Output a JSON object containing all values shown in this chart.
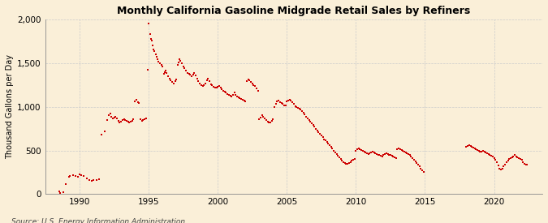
{
  "title": "Monthly California Gasoline Midgrade Retail Sales by Refiners",
  "ylabel": "Thousand Gallons per Day",
  "source": "Source: U.S. Energy Information Administration",
  "background_color": "#faefd8",
  "dot_color": "#cc0000",
  "dot_size": 3,
  "ylim": [
    0,
    2000
  ],
  "yticks": [
    0,
    500,
    1000,
    1500,
    2000
  ],
  "ytick_labels": [
    "0",
    "500",
    "1,000",
    "1,500",
    "2,000"
  ],
  "xticks": [
    1990,
    1995,
    2000,
    2005,
    2010,
    2015,
    2020
  ],
  "xlim": [
    1987.5,
    2023.5
  ],
  "grid_color": "#cccccc",
  "data": [
    [
      1988.5,
      30
    ],
    [
      1988.6,
      12
    ],
    [
      1988.8,
      22
    ],
    [
      1989.0,
      120
    ],
    [
      1989.2,
      195
    ],
    [
      1989.3,
      210
    ],
    [
      1989.5,
      220
    ],
    [
      1989.7,
      210
    ],
    [
      1989.9,
      195
    ],
    [
      1990.0,
      225
    ],
    [
      1990.1,
      220
    ],
    [
      1990.3,
      210
    ],
    [
      1990.5,
      180
    ],
    [
      1990.7,
      165
    ],
    [
      1990.9,
      155
    ],
    [
      1991.0,
      165
    ],
    [
      1991.2,
      160
    ],
    [
      1991.4,
      170
    ],
    [
      1991.6,
      680
    ],
    [
      1991.8,
      720
    ],
    [
      1992.0,
      850
    ],
    [
      1992.1,
      900
    ],
    [
      1992.2,
      920
    ],
    [
      1992.3,
      890
    ],
    [
      1992.4,
      870
    ],
    [
      1992.5,
      880
    ],
    [
      1992.6,
      890
    ],
    [
      1992.7,
      870
    ],
    [
      1992.8,
      840
    ],
    [
      1992.9,
      820
    ],
    [
      1993.0,
      830
    ],
    [
      1993.1,
      850
    ],
    [
      1993.2,
      860
    ],
    [
      1993.3,
      850
    ],
    [
      1993.4,
      840
    ],
    [
      1993.5,
      830
    ],
    [
      1993.6,
      820
    ],
    [
      1993.7,
      830
    ],
    [
      1993.8,
      840
    ],
    [
      1993.9,
      855
    ],
    [
      1994.0,
      1060
    ],
    [
      1994.1,
      1080
    ],
    [
      1994.2,
      1050
    ],
    [
      1994.3,
      1040
    ],
    [
      1994.4,
      860
    ],
    [
      1994.5,
      840
    ],
    [
      1994.6,
      845
    ],
    [
      1994.7,
      855
    ],
    [
      1994.8,
      870
    ],
    [
      1994.95,
      1420
    ],
    [
      1995.0,
      1950
    ],
    [
      1995.1,
      1830
    ],
    [
      1995.15,
      1780
    ],
    [
      1995.2,
      1760
    ],
    [
      1995.3,
      1700
    ],
    [
      1995.35,
      1660
    ],
    [
      1995.4,
      1640
    ],
    [
      1995.5,
      1600
    ],
    [
      1995.6,
      1570
    ],
    [
      1995.65,
      1540
    ],
    [
      1995.7,
      1520
    ],
    [
      1995.8,
      1500
    ],
    [
      1995.9,
      1480
    ],
    [
      1996.0,
      1460
    ],
    [
      1996.1,
      1380
    ],
    [
      1996.15,
      1400
    ],
    [
      1996.2,
      1410
    ],
    [
      1996.3,
      1390
    ],
    [
      1996.4,
      1350
    ],
    [
      1996.5,
      1320
    ],
    [
      1996.6,
      1300
    ],
    [
      1996.7,
      1280
    ],
    [
      1996.8,
      1270
    ],
    [
      1996.9,
      1290
    ],
    [
      1997.0,
      1310
    ],
    [
      1997.1,
      1480
    ],
    [
      1997.15,
      1510
    ],
    [
      1997.2,
      1540
    ],
    [
      1997.3,
      1530
    ],
    [
      1997.4,
      1500
    ],
    [
      1997.5,
      1460
    ],
    [
      1997.6,
      1440
    ],
    [
      1997.7,
      1410
    ],
    [
      1997.8,
      1390
    ],
    [
      1997.9,
      1380
    ],
    [
      1998.0,
      1370
    ],
    [
      1998.1,
      1350
    ],
    [
      1998.2,
      1370
    ],
    [
      1998.3,
      1390
    ],
    [
      1998.4,
      1360
    ],
    [
      1998.5,
      1320
    ],
    [
      1998.6,
      1290
    ],
    [
      1998.7,
      1270
    ],
    [
      1998.8,
      1250
    ],
    [
      1998.9,
      1240
    ],
    [
      1999.0,
      1250
    ],
    [
      1999.1,
      1270
    ],
    [
      1999.2,
      1300
    ],
    [
      1999.3,
      1320
    ],
    [
      1999.4,
      1290
    ],
    [
      1999.5,
      1260
    ],
    [
      1999.6,
      1250
    ],
    [
      1999.7,
      1230
    ],
    [
      1999.8,
      1215
    ],
    [
      1999.9,
      1220
    ],
    [
      2000.0,
      1230
    ],
    [
      2000.1,
      1240
    ],
    [
      2000.2,
      1220
    ],
    [
      2000.3,
      1200
    ],
    [
      2000.4,
      1185
    ],
    [
      2000.5,
      1170
    ],
    [
      2000.6,
      1160
    ],
    [
      2000.7,
      1150
    ],
    [
      2000.8,
      1140
    ],
    [
      2000.9,
      1130
    ],
    [
      2001.0,
      1120
    ],
    [
      2001.1,
      1140
    ],
    [
      2001.2,
      1160
    ],
    [
      2001.3,
      1140
    ],
    [
      2001.4,
      1120
    ],
    [
      2001.5,
      1110
    ],
    [
      2001.6,
      1100
    ],
    [
      2001.7,
      1090
    ],
    [
      2001.8,
      1080
    ],
    [
      2001.9,
      1070
    ],
    [
      2002.0,
      1060
    ],
    [
      2002.1,
      1290
    ],
    [
      2002.2,
      1310
    ],
    [
      2002.3,
      1300
    ],
    [
      2002.4,
      1285
    ],
    [
      2002.5,
      1265
    ],
    [
      2002.6,
      1250
    ],
    [
      2002.7,
      1240
    ],
    [
      2002.8,
      1210
    ],
    [
      2002.9,
      1180
    ],
    [
      2003.0,
      860
    ],
    [
      2003.1,
      880
    ],
    [
      2003.2,
      900
    ],
    [
      2003.3,
      890
    ],
    [
      2003.4,
      870
    ],
    [
      2003.5,
      850
    ],
    [
      2003.6,
      830
    ],
    [
      2003.7,
      820
    ],
    [
      2003.8,
      825
    ],
    [
      2003.9,
      840
    ],
    [
      2004.0,
      860
    ],
    [
      2004.1,
      1000
    ],
    [
      2004.2,
      1030
    ],
    [
      2004.3,
      1060
    ],
    [
      2004.4,
      1070
    ],
    [
      2004.5,
      1055
    ],
    [
      2004.6,
      1040
    ],
    [
      2004.7,
      1030
    ],
    [
      2004.8,
      1020
    ],
    [
      2004.9,
      1015
    ],
    [
      2005.0,
      1060
    ],
    [
      2005.1,
      1070
    ],
    [
      2005.2,
      1080
    ],
    [
      2005.3,
      1070
    ],
    [
      2005.4,
      1050
    ],
    [
      2005.5,
      1030
    ],
    [
      2005.6,
      1010
    ],
    [
      2005.7,
      1000
    ],
    [
      2005.8,
      990
    ],
    [
      2005.9,
      980
    ],
    [
      2006.0,
      970
    ],
    [
      2006.1,
      950
    ],
    [
      2006.2,
      930
    ],
    [
      2006.3,
      910
    ],
    [
      2006.4,
      890
    ],
    [
      2006.5,
      870
    ],
    [
      2006.6,
      850
    ],
    [
      2006.7,
      830
    ],
    [
      2006.8,
      810
    ],
    [
      2006.9,
      790
    ],
    [
      2007.0,
      770
    ],
    [
      2007.1,
      750
    ],
    [
      2007.2,
      730
    ],
    [
      2007.3,
      710
    ],
    [
      2007.4,
      690
    ],
    [
      2007.5,
      670
    ],
    [
      2007.6,
      650
    ],
    [
      2007.7,
      630
    ],
    [
      2007.8,
      615
    ],
    [
      2007.9,
      600
    ],
    [
      2008.0,
      580
    ],
    [
      2008.1,
      560
    ],
    [
      2008.2,
      540
    ],
    [
      2008.3,
      520
    ],
    [
      2008.4,
      500
    ],
    [
      2008.5,
      480
    ],
    [
      2008.6,
      460
    ],
    [
      2008.7,
      440
    ],
    [
      2008.8,
      420
    ],
    [
      2008.9,
      400
    ],
    [
      2009.0,
      380
    ],
    [
      2009.1,
      365
    ],
    [
      2009.2,
      355
    ],
    [
      2009.3,
      345
    ],
    [
      2009.4,
      350
    ],
    [
      2009.5,
      360
    ],
    [
      2009.6,
      370
    ],
    [
      2009.7,
      380
    ],
    [
      2009.8,
      390
    ],
    [
      2009.9,
      400
    ],
    [
      2010.0,
      500
    ],
    [
      2010.1,
      515
    ],
    [
      2010.2,
      525
    ],
    [
      2010.3,
      515
    ],
    [
      2010.4,
      505
    ],
    [
      2010.5,
      495
    ],
    [
      2010.6,
      485
    ],
    [
      2010.7,
      475
    ],
    [
      2010.8,
      465
    ],
    [
      2010.9,
      455
    ],
    [
      2011.0,
      470
    ],
    [
      2011.1,
      480
    ],
    [
      2011.2,
      490
    ],
    [
      2011.3,
      480
    ],
    [
      2011.4,
      470
    ],
    [
      2011.5,
      460
    ],
    [
      2011.6,
      450
    ],
    [
      2011.7,
      445
    ],
    [
      2011.8,
      440
    ],
    [
      2011.9,
      430
    ],
    [
      2012.0,
      450
    ],
    [
      2012.1,
      460
    ],
    [
      2012.2,
      470
    ],
    [
      2012.3,
      460
    ],
    [
      2012.4,
      450
    ],
    [
      2012.5,
      445
    ],
    [
      2012.6,
      440
    ],
    [
      2012.7,
      430
    ],
    [
      2012.8,
      420
    ],
    [
      2012.9,
      410
    ],
    [
      2013.0,
      510
    ],
    [
      2013.1,
      520
    ],
    [
      2013.2,
      515
    ],
    [
      2013.3,
      505
    ],
    [
      2013.4,
      495
    ],
    [
      2013.5,
      485
    ],
    [
      2013.6,
      475
    ],
    [
      2013.7,
      465
    ],
    [
      2013.8,
      455
    ],
    [
      2013.9,
      445
    ],
    [
      2014.0,
      430
    ],
    [
      2014.1,
      415
    ],
    [
      2014.2,
      395
    ],
    [
      2014.3,
      375
    ],
    [
      2014.4,
      355
    ],
    [
      2014.5,
      335
    ],
    [
      2014.6,
      315
    ],
    [
      2014.7,
      295
    ],
    [
      2014.8,
      275
    ],
    [
      2014.9,
      255
    ],
    [
      2018.0,
      545
    ],
    [
      2018.1,
      555
    ],
    [
      2018.2,
      560
    ],
    [
      2018.3,
      555
    ],
    [
      2018.4,
      545
    ],
    [
      2018.5,
      535
    ],
    [
      2018.6,
      525
    ],
    [
      2018.7,
      515
    ],
    [
      2018.8,
      505
    ],
    [
      2018.9,
      495
    ],
    [
      2019.0,
      485
    ],
    [
      2019.1,
      490
    ],
    [
      2019.2,
      500
    ],
    [
      2019.3,
      490
    ],
    [
      2019.4,
      480
    ],
    [
      2019.5,
      470
    ],
    [
      2019.6,
      460
    ],
    [
      2019.7,
      450
    ],
    [
      2019.8,
      440
    ],
    [
      2019.9,
      430
    ],
    [
      2020.0,
      415
    ],
    [
      2020.1,
      395
    ],
    [
      2020.2,
      365
    ],
    [
      2020.3,
      330
    ],
    [
      2020.4,
      295
    ],
    [
      2020.5,
      280
    ],
    [
      2020.6,
      295
    ],
    [
      2020.7,
      315
    ],
    [
      2020.8,
      340
    ],
    [
      2020.9,
      365
    ],
    [
      2021.0,
      385
    ],
    [
      2021.1,
      400
    ],
    [
      2021.2,
      415
    ],
    [
      2021.3,
      425
    ],
    [
      2021.4,
      435
    ],
    [
      2021.5,
      445
    ],
    [
      2021.6,
      435
    ],
    [
      2021.7,
      425
    ],
    [
      2021.8,
      415
    ],
    [
      2021.9,
      405
    ],
    [
      2022.0,
      390
    ],
    [
      2022.1,
      370
    ],
    [
      2022.2,
      350
    ],
    [
      2022.3,
      340
    ],
    [
      2022.4,
      335
    ]
  ]
}
